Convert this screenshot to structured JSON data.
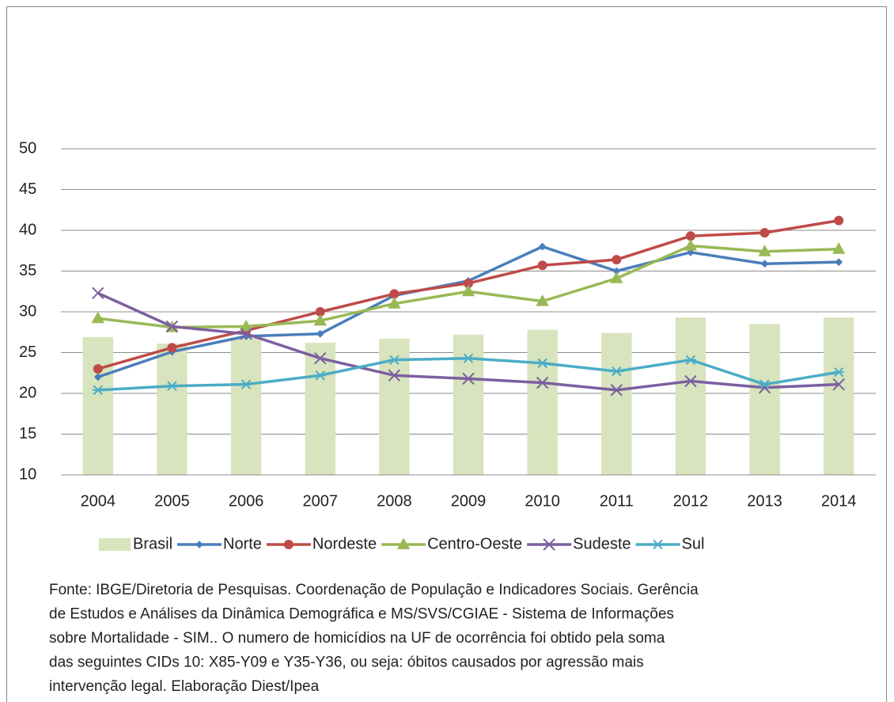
{
  "chart_data": {
    "type": "bar-line",
    "categories": [
      "2004",
      "2005",
      "2006",
      "2007",
      "2008",
      "2009",
      "2010",
      "2011",
      "2012",
      "2013",
      "2014"
    ],
    "series": [
      {
        "name": "Brasil",
        "type": "bar",
        "color": "#d7e4bd",
        "values": [
          26.9,
          26.1,
          26.8,
          26.2,
          26.7,
          27.2,
          27.8,
          27.4,
          29.3,
          28.5,
          29.3
        ]
      },
      {
        "name": "Norte",
        "type": "line",
        "marker": "diamond",
        "color": "#4a7ebb",
        "values": [
          22.0,
          25.1,
          27.0,
          27.3,
          32.0,
          33.8,
          38.0,
          35.0,
          37.3,
          35.9,
          36.1
        ]
      },
      {
        "name": "Nordeste",
        "type": "line",
        "marker": "circle",
        "color": "#be4b48",
        "values": [
          23.0,
          25.6,
          27.7,
          30.0,
          32.2,
          33.5,
          35.7,
          36.4,
          39.3,
          39.7,
          41.2
        ]
      },
      {
        "name": "Centro-Oeste",
        "type": "line",
        "marker": "triangle",
        "color": "#98b954",
        "values": [
          29.2,
          28.1,
          28.2,
          28.9,
          31.0,
          32.5,
          31.3,
          34.1,
          38.1,
          37.4,
          37.7
        ]
      },
      {
        "name": "Sudeste",
        "type": "line",
        "marker": "x",
        "color": "#7d5fa0",
        "values": [
          32.3,
          28.2,
          27.3,
          24.3,
          22.2,
          21.8,
          21.3,
          20.4,
          21.5,
          20.7,
          21.1
        ]
      },
      {
        "name": "Sul",
        "type": "line",
        "marker": "asterisk",
        "color": "#4bacc6",
        "values": [
          20.4,
          20.9,
          21.1,
          22.2,
          24.1,
          24.3,
          23.7,
          22.7,
          24.1,
          21.1,
          22.6
        ]
      }
    ],
    "ylim": [
      10,
      50
    ],
    "yticks": [
      10,
      15,
      20,
      25,
      30,
      35,
      40,
      45,
      50
    ],
    "grid": true,
    "legend": "bottom",
    "source": [
      "Fonte: IBGE/Diretoria de Pesquisas. Coordenação de População e Indicadores Sociais. Gerência",
      "de Estudos e Análises da Dinâmica Demográfica e MS/SVS/CGIAE - Sistema de Informações",
      "sobre Mortalidade - SIM.. O numero de homicídios na UF de ocorrência foi obtido pela soma",
      "das seguintes CIDs 10: X85-Y09 e Y35-Y36, ou seja: óbitos causados por agressão mais",
      "intervenção legal. Elaboração Diest/Ipea"
    ]
  }
}
